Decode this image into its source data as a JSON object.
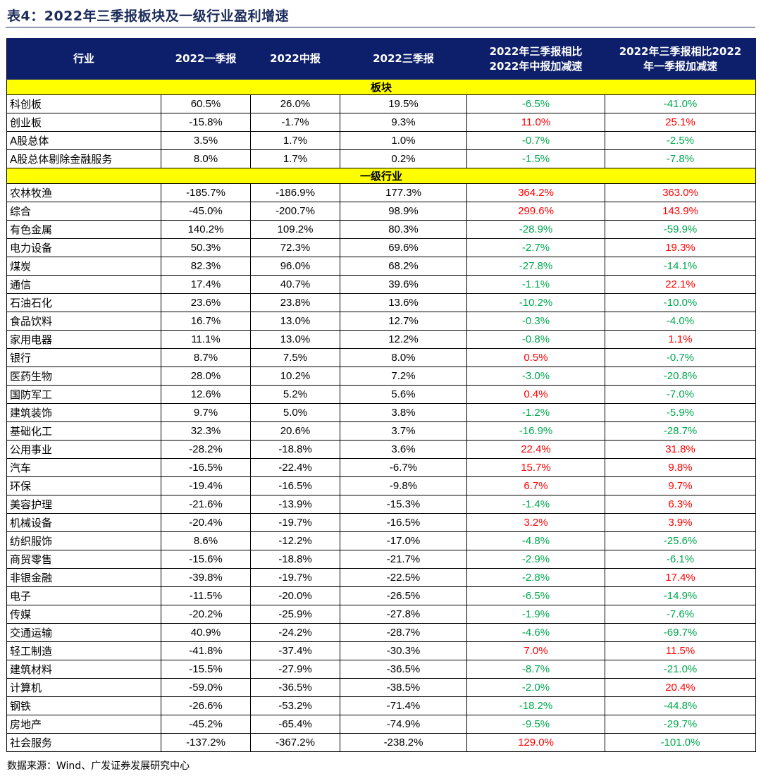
{
  "title": "表4：2022年三季报板块及一级行业盈利增速",
  "headers": [
    "行业",
    "2022一季报",
    "2022中报",
    "2022三季报",
    "2022年三季报相比\n2022年中报加减速",
    "2022年三季报相比2022\n年一季报加减速"
  ],
  "colors": {
    "header_bg": "#0d1f6b",
    "section_bg": "#ffff00",
    "positive": "#ff0000",
    "negative": "#00a84f"
  },
  "sections": [
    {
      "label": "板块",
      "rows": [
        [
          "科创板",
          "60.5%",
          "26.0%",
          "19.5%",
          "-6.5%",
          "-41.0%"
        ],
        [
          "创业板",
          "-15.8%",
          "-1.7%",
          "9.3%",
          "11.0%",
          "25.1%"
        ],
        [
          "A股总体",
          "3.5%",
          "1.7%",
          "1.0%",
          "-0.7%",
          "-2.5%"
        ],
        [
          "A股总体剔除金融服务",
          "8.0%",
          "1.7%",
          "0.2%",
          "-1.5%",
          "-7.8%"
        ]
      ]
    },
    {
      "label": "一级行业",
      "rows": [
        [
          "农林牧渔",
          "-185.7%",
          "-186.9%",
          "177.3%",
          "364.2%",
          "363.0%"
        ],
        [
          "综合",
          "-45.0%",
          "-200.7%",
          "98.9%",
          "299.6%",
          "143.9%"
        ],
        [
          "有色金属",
          "140.2%",
          "109.2%",
          "80.3%",
          "-28.9%",
          "-59.9%"
        ],
        [
          "电力设备",
          "50.3%",
          "72.3%",
          "69.6%",
          "-2.7%",
          "19.3%"
        ],
        [
          "煤炭",
          "82.3%",
          "96.0%",
          "68.2%",
          "-27.8%",
          "-14.1%"
        ],
        [
          "通信",
          "17.4%",
          "40.7%",
          "39.6%",
          "-1.1%",
          "22.1%"
        ],
        [
          "石油石化",
          "23.6%",
          "23.8%",
          "13.6%",
          "-10.2%",
          "-10.0%"
        ],
        [
          "食品饮料",
          "16.7%",
          "13.0%",
          "12.7%",
          "-0.3%",
          "-4.0%"
        ],
        [
          "家用电器",
          "11.1%",
          "13.0%",
          "12.2%",
          "-0.8%",
          "1.1%"
        ],
        [
          "银行",
          "8.7%",
          "7.5%",
          "8.0%",
          "0.5%",
          "-0.7%"
        ],
        [
          "医药生物",
          "28.0%",
          "10.2%",
          "7.2%",
          "-3.0%",
          "-20.8%"
        ],
        [
          "国防军工",
          "12.6%",
          "5.2%",
          "5.6%",
          "0.4%",
          "-7.0%"
        ],
        [
          "建筑装饰",
          "9.7%",
          "5.0%",
          "3.8%",
          "-1.2%",
          "-5.9%"
        ],
        [
          "基础化工",
          "32.3%",
          "20.6%",
          "3.7%",
          "-16.9%",
          "-28.7%"
        ],
        [
          "公用事业",
          "-28.2%",
          "-18.8%",
          "3.6%",
          "22.4%",
          "31.8%"
        ],
        [
          "汽车",
          "-16.5%",
          "-22.4%",
          "-6.7%",
          "15.7%",
          "9.8%"
        ],
        [
          "环保",
          "-19.4%",
          "-16.5%",
          "-9.8%",
          "6.7%",
          "9.7%"
        ],
        [
          "美容护理",
          "-21.6%",
          "-13.9%",
          "-15.3%",
          "-1.4%",
          "6.3%"
        ],
        [
          "机械设备",
          "-20.4%",
          "-19.7%",
          "-16.5%",
          "3.2%",
          "3.9%"
        ],
        [
          "纺织服饰",
          "8.6%",
          "-12.2%",
          "-17.0%",
          "-4.8%",
          "-25.6%"
        ],
        [
          "商贸零售",
          "-15.6%",
          "-18.8%",
          "-21.7%",
          "-2.9%",
          "-6.1%"
        ],
        [
          "非银金融",
          "-39.8%",
          "-19.7%",
          "-22.5%",
          "-2.8%",
          "17.4%"
        ],
        [
          "电子",
          "-11.5%",
          "-20.0%",
          "-26.5%",
          "-6.5%",
          "-14.9%"
        ],
        [
          "传媒",
          "-20.2%",
          "-25.9%",
          "-27.8%",
          "-1.9%",
          "-7.6%"
        ],
        [
          "交通运输",
          "40.9%",
          "-24.2%",
          "-28.7%",
          "-4.6%",
          "-69.7%"
        ],
        [
          "轻工制造",
          "-41.8%",
          "-37.4%",
          "-30.3%",
          "7.0%",
          "11.5%"
        ],
        [
          "建筑材料",
          "-15.5%",
          "-27.9%",
          "-36.5%",
          "-8.7%",
          "-21.0%"
        ],
        [
          "计算机",
          "-59.0%",
          "-36.5%",
          "-38.5%",
          "-2.0%",
          "20.4%"
        ],
        [
          "钢铁",
          "-26.6%",
          "-53.2%",
          "-71.4%",
          "-18.2%",
          "-44.8%"
        ],
        [
          "房地产",
          "-45.2%",
          "-65.4%",
          "-74.9%",
          "-9.5%",
          "-29.7%"
        ],
        [
          "社会服务",
          "-137.2%",
          "-367.2%",
          "-238.2%",
          "129.0%",
          "-101.0%"
        ]
      ]
    }
  ],
  "source": "数据来源：Wind、广发证券发展研究中心"
}
